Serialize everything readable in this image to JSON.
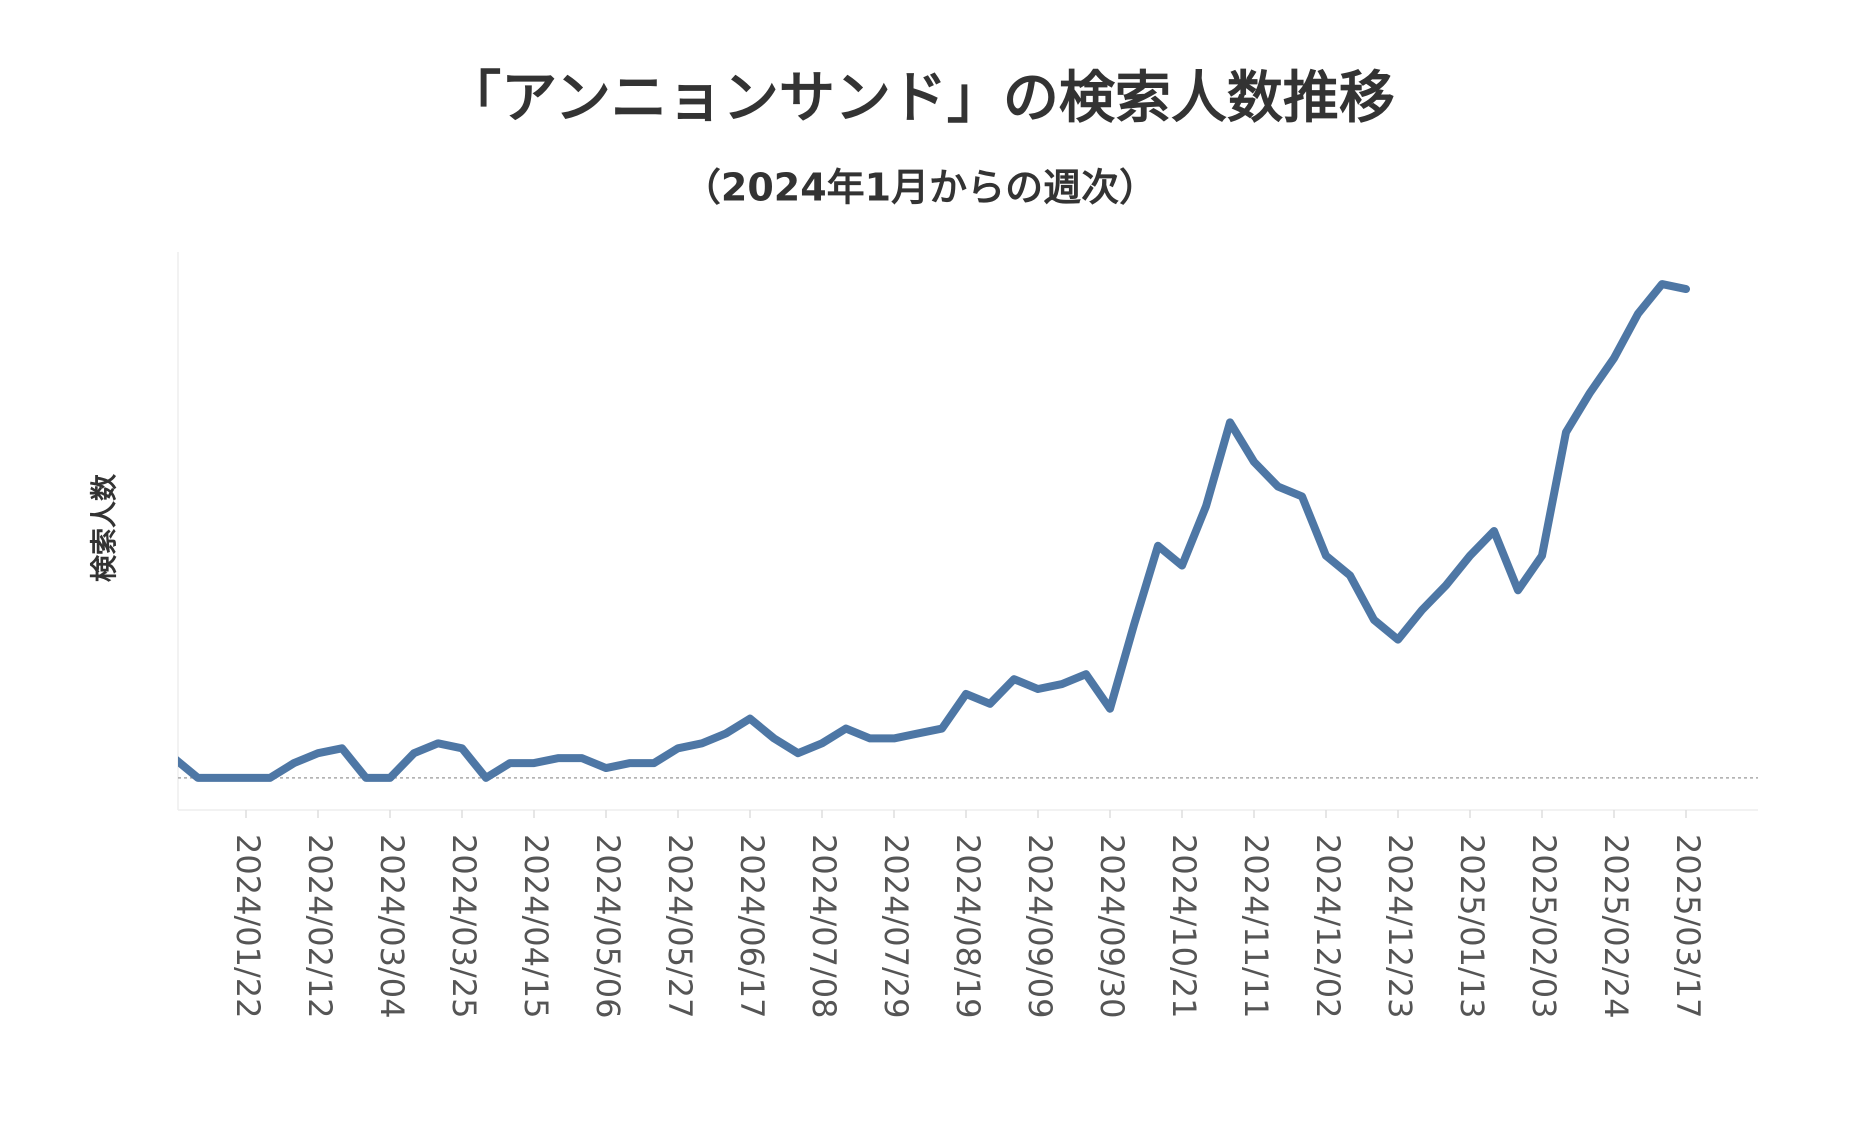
{
  "chart_data": {
    "type": "line",
    "title": "「アンニョンサンド」の検索人数推移",
    "subtitle": "（2024年1月からの週次）",
    "y_label": "検索人数",
    "categories": [
      null,
      null,
      null,
      "2024/01/22",
      null,
      null,
      "2024/02/12",
      null,
      null,
      "2024/03/04",
      null,
      null,
      "2024/03/25",
      null,
      null,
      "2024/04/15",
      null,
      null,
      "2024/05/06",
      null,
      null,
      "2024/05/27",
      null,
      null,
      "2024/06/17",
      null,
      null,
      "2024/07/08",
      null,
      null,
      "2024/07/29",
      null,
      null,
      "2024/08/19",
      null,
      null,
      "2024/09/09",
      null,
      null,
      "2024/09/30",
      null,
      null,
      "2024/10/21",
      null,
      null,
      "2024/11/11",
      null,
      null,
      "2024/12/02",
      null,
      null,
      "2024/12/23",
      null,
      null,
      "2025/01/13",
      null,
      null,
      "2025/02/03",
      null,
      null,
      "2025/02/24",
      null,
      null,
      "2025/03/17"
    ],
    "values": [
      4,
      0,
      0,
      0,
      0,
      3,
      5,
      6,
      0,
      0,
      5,
      7,
      6,
      0,
      3,
      3,
      4,
      4,
      2,
      3,
      3,
      6,
      7,
      9,
      12,
      8,
      5,
      7,
      10,
      8,
      8,
      9,
      10,
      17,
      15,
      20,
      18,
      19,
      21,
      14,
      31,
      47,
      43,
      55,
      72,
      64,
      59,
      57,
      45,
      41,
      32,
      28,
      34,
      39,
      45,
      50,
      38,
      45,
      70,
      78,
      85,
      94,
      100,
      99
    ],
    "color": "#4e77a5",
    "ylim": [
      -6.5,
      106.5
    ],
    "baseline": 0
  }
}
